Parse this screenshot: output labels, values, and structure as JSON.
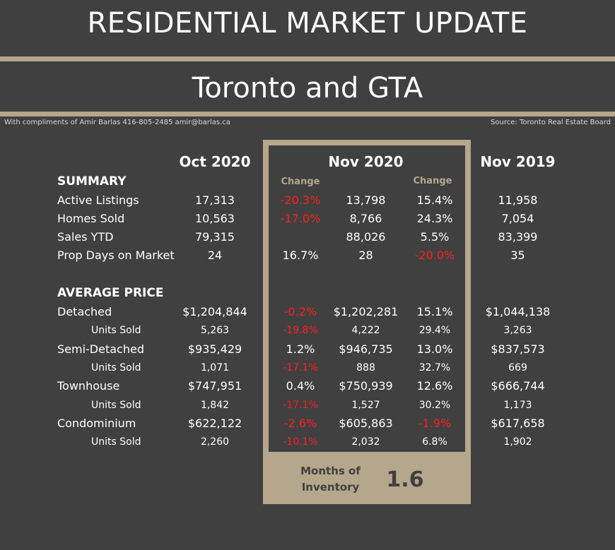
{
  "header": {
    "title": "RESIDENTIAL MARKET UPDATE",
    "subtitle": "Toronto and GTA",
    "compliments": "With compliments of Amir Barlas 416-805-2485 amir@barlas.ca",
    "source": "Source: Toronto Real Estate Board"
  },
  "columns": {
    "oct2020": "Oct 2020",
    "nov2020": "Nov 2020",
    "nov2019": "Nov 2019",
    "change": "Change"
  },
  "sections": {
    "summary": "SUMMARY",
    "average_price": "AVERAGE PRICE"
  },
  "summary_rows": [
    {
      "label": "Active Listings",
      "oct": "17,313",
      "chg1": "-20.3%",
      "nov20": "13,798",
      "chg2": "15.4%",
      "nov19": "11,958"
    },
    {
      "label": "Homes Sold",
      "oct": "10,563",
      "chg1": "-17.0%",
      "nov20": "8,766",
      "chg2": "24.3%",
      "nov19": "7,054"
    },
    {
      "label": "Sales YTD",
      "oct": "79,315",
      "chg1": "",
      "nov20": "88,026",
      "chg2": "5.5%",
      "nov19": "83,399"
    },
    {
      "label": "Prop Days on Market",
      "oct": "24",
      "chg1": "16.7%",
      "nov20": "28",
      "chg2": "-20.0%",
      "nov19": "35"
    }
  ],
  "price_rows": [
    {
      "label": "Detached",
      "oct": "$1,204,844",
      "chg1": "-0.2%",
      "nov20": "$1,202,281",
      "chg2": "15.1%",
      "nov19": "$1,044,138"
    },
    {
      "label": "Units Sold",
      "oct": "5,263",
      "chg1": "-19.8%",
      "nov20": "4,222",
      "chg2": "29.4%",
      "nov19": "3,263"
    },
    {
      "label": "Semi-Detached",
      "oct": "$935,429",
      "chg1": "1.2%",
      "nov20": "$946,735",
      "chg2": "13.0%",
      "nov19": "$837,573"
    },
    {
      "label": "Units Sold",
      "oct": "1,071",
      "chg1": "-17.1%",
      "nov20": "888",
      "chg2": "32.7%",
      "nov19": "669"
    },
    {
      "label": "Townhouse",
      "oct": "$747,951",
      "chg1": "0.4%",
      "nov20": "$750,939",
      "chg2": "12.6%",
      "nov19": "$666,744"
    },
    {
      "label": "Units Sold",
      "oct": "1,842",
      "chg1": "-17.1%",
      "nov20": "1,527",
      "chg2": "30.2%",
      "nov19": "1,173"
    },
    {
      "label": "Condominium",
      "oct": "$622,122",
      "chg1": "-2.6%",
      "nov20": "$605,863",
      "chg2": "-1.9%",
      "nov19": "$617,658"
    },
    {
      "label": "Units Sold",
      "oct": "2,260",
      "chg1": "-10.1%",
      "nov20": "2,032",
      "chg2": "6.8%",
      "nov19": "1,902"
    }
  ],
  "months_of_inventory": {
    "label_line1": "Months of",
    "label_line2": "Inventory",
    "value": "1.6"
  },
  "colors": {
    "background": "#404040",
    "accent": "#b5a78b",
    "negative": "#ff1c1c",
    "text": "#ffffff"
  }
}
